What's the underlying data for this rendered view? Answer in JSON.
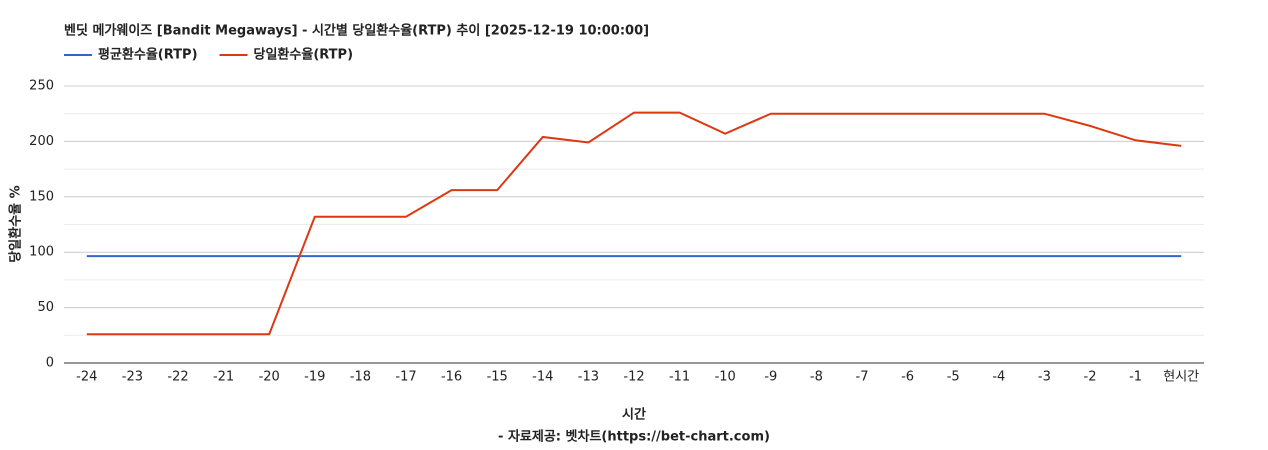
{
  "chart_data": {
    "type": "line",
    "title": "벤딧 메가웨이즈 [Bandit Megaways] - 시간별 당일환수율(RTP) 추이 [2025-12-19 10:00:00]",
    "x_label": "시간",
    "y_label": "당일환수율 %",
    "source": "- 자료제공: 벳차트(https://bet-chart.com)",
    "categories": [
      "-24",
      "-23",
      "-22",
      "-21",
      "-20",
      "-19",
      "-18",
      "-17",
      "-16",
      "-15",
      "-14",
      "-13",
      "-12",
      "-11",
      "-10",
      "-9",
      "-8",
      "-7",
      "-6",
      "-5",
      "-4",
      "-3",
      "-2",
      "-1",
      "현시간"
    ],
    "series": [
      {
        "name": "평균환수율(RTP)",
        "color": "#3366cc",
        "values": [
          96.5,
          96.5,
          96.5,
          96.5,
          96.5,
          96.5,
          96.5,
          96.5,
          96.5,
          96.5,
          96.5,
          96.5,
          96.5,
          96.5,
          96.5,
          96.5,
          96.5,
          96.5,
          96.5,
          96.5,
          96.5,
          96.5,
          96.5,
          96.5,
          96.5
        ]
      },
      {
        "name": "당일환수율(RTP)",
        "color": "#dc3912",
        "values": [
          26,
          26,
          26,
          26,
          26,
          132,
          132,
          132,
          156,
          156,
          204,
          199,
          226,
          226,
          207,
          225,
          225,
          225,
          225,
          225,
          225,
          225,
          214,
          201,
          196
        ]
      }
    ],
    "ylim": [
      0,
      250
    ],
    "yticks": [
      0,
      50,
      100,
      150,
      200,
      250
    ],
    "minor_yticks": [
      25,
      75,
      125,
      175,
      225
    ],
    "grid": true,
    "legend": "top"
  }
}
